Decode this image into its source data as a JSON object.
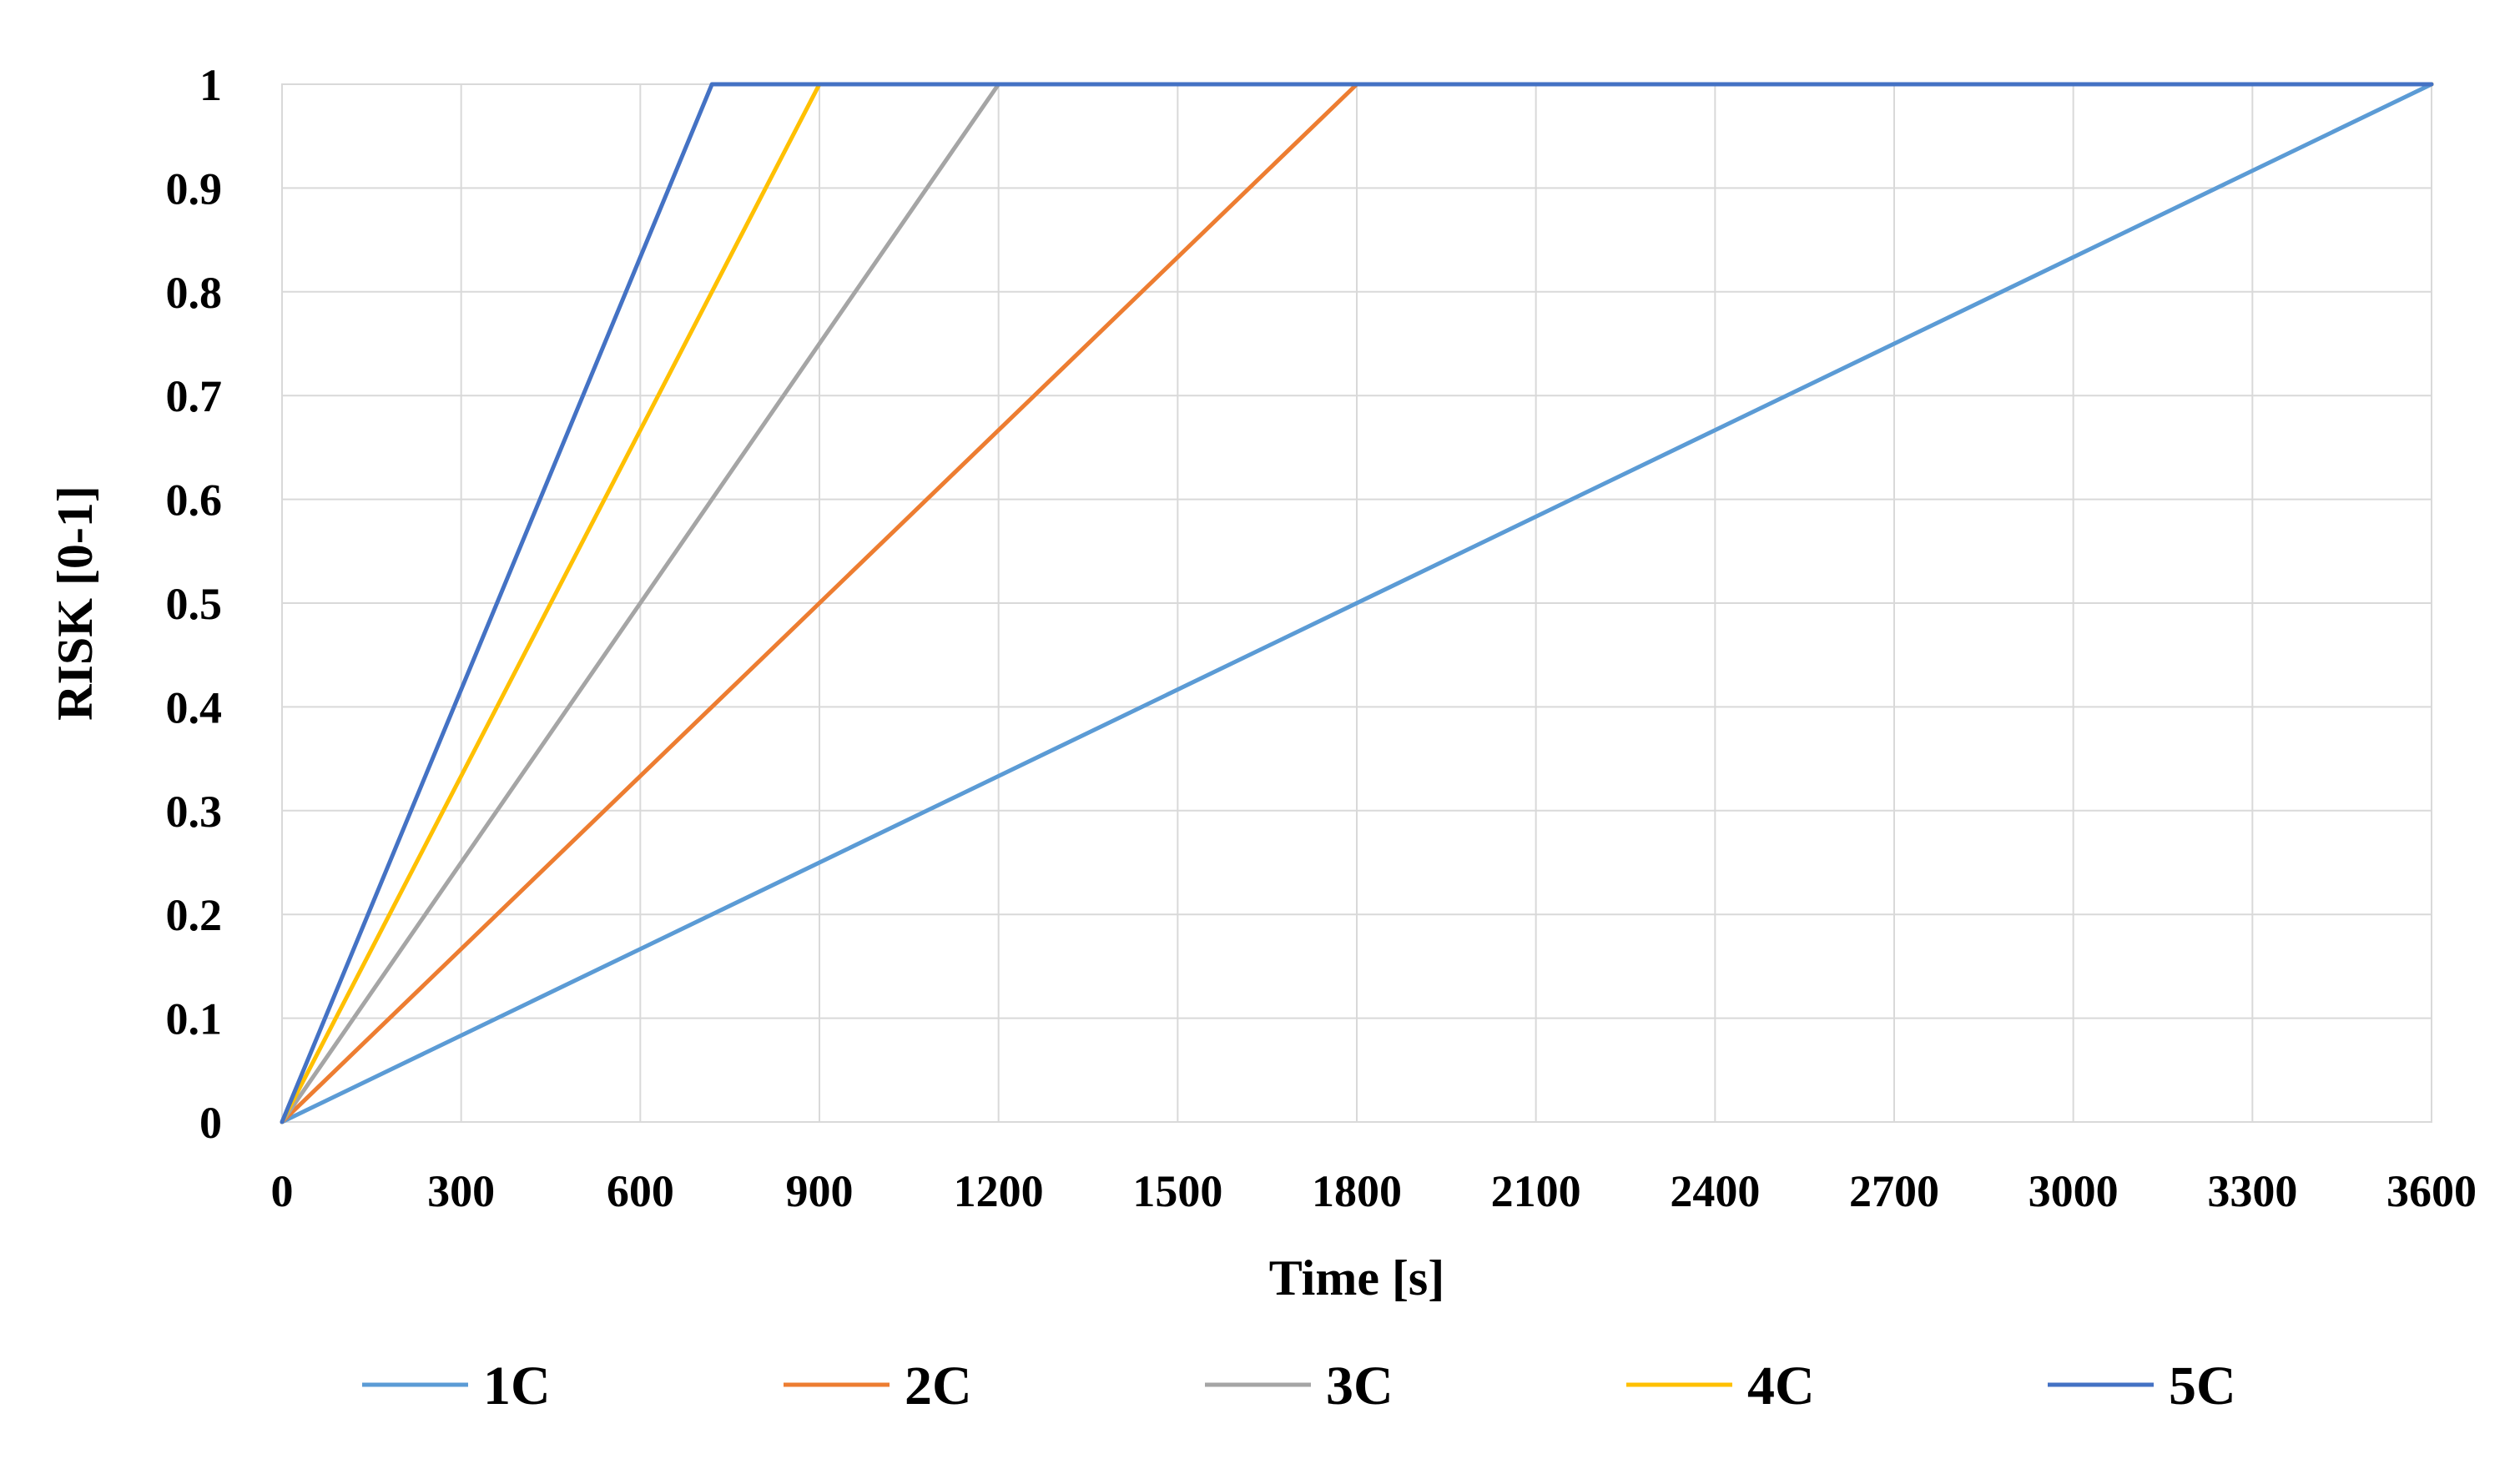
{
  "chart_data": {
    "type": "line",
    "title": "",
    "xlabel": "Time [s]",
    "ylabel": "RISK [0-1]",
    "xlim": [
      0,
      3600
    ],
    "ylim": [
      0,
      1
    ],
    "x_ticks": [
      0,
      300,
      600,
      900,
      1200,
      1500,
      1800,
      2100,
      2400,
      2700,
      3000,
      3300,
      3600
    ],
    "y_ticks": [
      0,
      0.1,
      0.2,
      0.3,
      0.4,
      0.5,
      0.6,
      0.7,
      0.8,
      0.9,
      1
    ],
    "x_tick_labels": [
      "0",
      "300",
      "600",
      "900",
      "1200",
      "1500",
      "1800",
      "2100",
      "2400",
      "2700",
      "3000",
      "3300",
      "3600"
    ],
    "y_tick_labels": [
      "0",
      "0.1",
      "0.2",
      "0.3",
      "0.4",
      "0.5",
      "0.6",
      "0.7",
      "0.8",
      "0.9",
      "1"
    ],
    "grid": true,
    "legend_position": "bottom",
    "series": [
      {
        "name": "1C",
        "color": "#5b9bd5",
        "points": [
          [
            0,
            0
          ],
          [
            3600,
            1
          ]
        ]
      },
      {
        "name": "2C",
        "color": "#ed7d31",
        "points": [
          [
            0,
            0
          ],
          [
            1800,
            1
          ],
          [
            3600,
            1
          ]
        ]
      },
      {
        "name": "3C",
        "color": "#a5a5a5",
        "points": [
          [
            0,
            0
          ],
          [
            1200,
            1
          ],
          [
            3600,
            1
          ]
        ]
      },
      {
        "name": "4C",
        "color": "#ffc000",
        "points": [
          [
            0,
            0
          ],
          [
            900,
            1
          ],
          [
            3600,
            1
          ]
        ]
      },
      {
        "name": "5C",
        "color": "#4472c4",
        "points": [
          [
            0,
            0
          ],
          [
            720,
            1
          ],
          [
            3600,
            1
          ]
        ]
      }
    ]
  }
}
